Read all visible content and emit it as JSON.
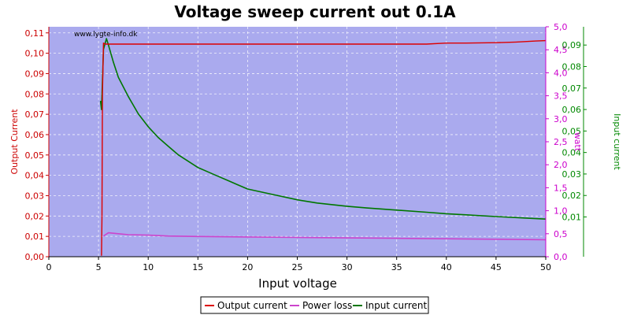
{
  "chart_data": {
    "type": "line",
    "title": "Voltage sweep current out 0.1A",
    "watermark": "www.lygte-info.dk",
    "xlabel": "Input voltage",
    "xlim": [
      0,
      50
    ],
    "x_ticks": [
      "0",
      "5",
      "10",
      "15",
      "20",
      "25",
      "30",
      "35",
      "40",
      "45",
      "50"
    ],
    "plot_background": "#aaaaee",
    "grid": true,
    "legend_position": "bottom-center",
    "axes": {
      "left": {
        "label": "Output Current",
        "color": "#cc0000",
        "lim": [
          0,
          0.113
        ],
        "ticks": [
          "0,00",
          "0,01",
          "0,02",
          "0,03",
          "0,04",
          "0,05",
          "0,06",
          "0,07",
          "0,08",
          "0,09",
          "0,10",
          "0,11"
        ]
      },
      "right1": {
        "label": "watt",
        "color": "#cc00cc",
        "lim": [
          0,
          5.0
        ],
        "ticks": [
          "0,0",
          "0,5",
          "1,0",
          "1,5",
          "2,0",
          "2,5",
          "3,0",
          "3,5",
          "4,0",
          "4,5",
          "5,0"
        ]
      },
      "right2": {
        "label": "Input current",
        "color": "#008800",
        "lim": [
          -0.0085,
          0.0985
        ],
        "ticks": [
          "0,01",
          "0,02",
          "0,03",
          "0,04",
          "0,05",
          "0,06",
          "0,07",
          "0,08",
          "0,09"
        ]
      }
    },
    "series": [
      {
        "name": "Output current",
        "axis": "left",
        "color": "#dd0000",
        "x": [
          5.3,
          5.35,
          5.4,
          5.5,
          5.7,
          6,
          10,
          20,
          30,
          38,
          40,
          42,
          45,
          47,
          49,
          50
        ],
        "y": [
          0.0005,
          0.02,
          0.08,
          0.105,
          0.1045,
          0.1045,
          0.1045,
          0.1045,
          0.1045,
          0.1045,
          0.105,
          0.105,
          0.1052,
          0.1055,
          0.106,
          0.1062
        ]
      },
      {
        "name": "Power loss",
        "axis": "right1",
        "color": "#cc44cc",
        "x": [
          5.5,
          6,
          7,
          8,
          10,
          12,
          15,
          20,
          25,
          30,
          35,
          40,
          45,
          50
        ],
        "y": [
          0.45,
          0.52,
          0.5,
          0.48,
          0.47,
          0.45,
          0.44,
          0.43,
          0.42,
          0.41,
          0.4,
          0.39,
          0.38,
          0.37
        ]
      },
      {
        "name": "Input current",
        "axis": "right2",
        "color": "#007700",
        "x": [
          5.2,
          5.3,
          5.5,
          5.8,
          6,
          6.5,
          7,
          8,
          9,
          10,
          11,
          12,
          13,
          14,
          15,
          16,
          17,
          18,
          19,
          20,
          22,
          25,
          27,
          30,
          32,
          35,
          38,
          40,
          42,
          45,
          48,
          50
        ],
        "y": [
          0.064,
          0.06,
          0.088,
          0.093,
          0.09,
          0.082,
          0.075,
          0.066,
          0.058,
          0.052,
          0.047,
          0.043,
          0.039,
          0.036,
          0.033,
          0.031,
          0.029,
          0.027,
          0.025,
          0.023,
          0.021,
          0.018,
          0.0165,
          0.015,
          0.0142,
          0.0132,
          0.0122,
          0.0115,
          0.011,
          0.0102,
          0.0095,
          0.009
        ]
      }
    ]
  }
}
